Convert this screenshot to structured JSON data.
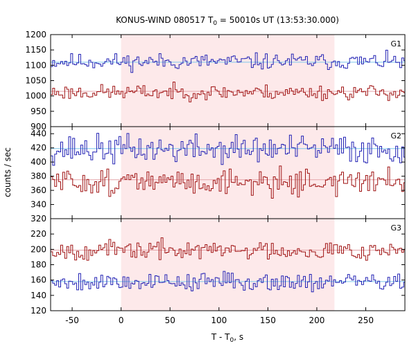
{
  "chart_data": {
    "type": "line",
    "title": {
      "main": "KONUS-WIND 080517 T",
      "sub": "0",
      "rest": " = 50010s UT (13:53:30.000)"
    },
    "xlabel": {
      "main": "T - T",
      "sub": "0",
      "rest": ", s"
    },
    "ylabel": "counts / sec",
    "xlim": [
      -72,
      290
    ],
    "x_ticks": [
      -50,
      0,
      50,
      100,
      150,
      200,
      250
    ],
    "shaded_interval": [
      0,
      218
    ],
    "colors": {
      "shade": "#fde9ea",
      "blue": "#2222b4",
      "red": "#a01414",
      "blue_bg": "#7ec8ec",
      "red_bg": "#e3a3a8"
    },
    "panels": [
      {
        "label": "G1",
        "ylim": [
          900,
          1200
        ],
        "y_ticks": [
          1200,
          1150,
          1100,
          1050,
          1000,
          950,
          900
        ],
        "series": [
          {
            "color": "blue",
            "background": 1110,
            "mean": 1112,
            "amp": 13,
            "seed": 11
          },
          {
            "color": "red",
            "background": 1015,
            "mean": 1012,
            "amp": 12,
            "seed": 23
          }
        ]
      },
      {
        "label": "G2",
        "ylim": [
          320,
          450
        ],
        "y_ticks": [
          440,
          420,
          400,
          380,
          360,
          340,
          320
        ],
        "series": [
          {
            "color": "blue",
            "background": 419,
            "mean": 418,
            "amp": 10,
            "seed": 37
          },
          {
            "color": "red",
            "background": 375,
            "mean": 372,
            "amp": 9,
            "seed": 51
          }
        ]
      },
      {
        "label": "G3",
        "ylim": [
          120,
          240
        ],
        "y_ticks": [
          220,
          200,
          180,
          160,
          140,
          120
        ],
        "series": [
          {
            "color": "red",
            "background": 199,
            "mean": 199,
            "amp": 6,
            "seed": 67
          },
          {
            "color": "blue",
            "background": 158,
            "mean": 158,
            "amp": 6,
            "seed": 79
          }
        ]
      }
    ]
  }
}
